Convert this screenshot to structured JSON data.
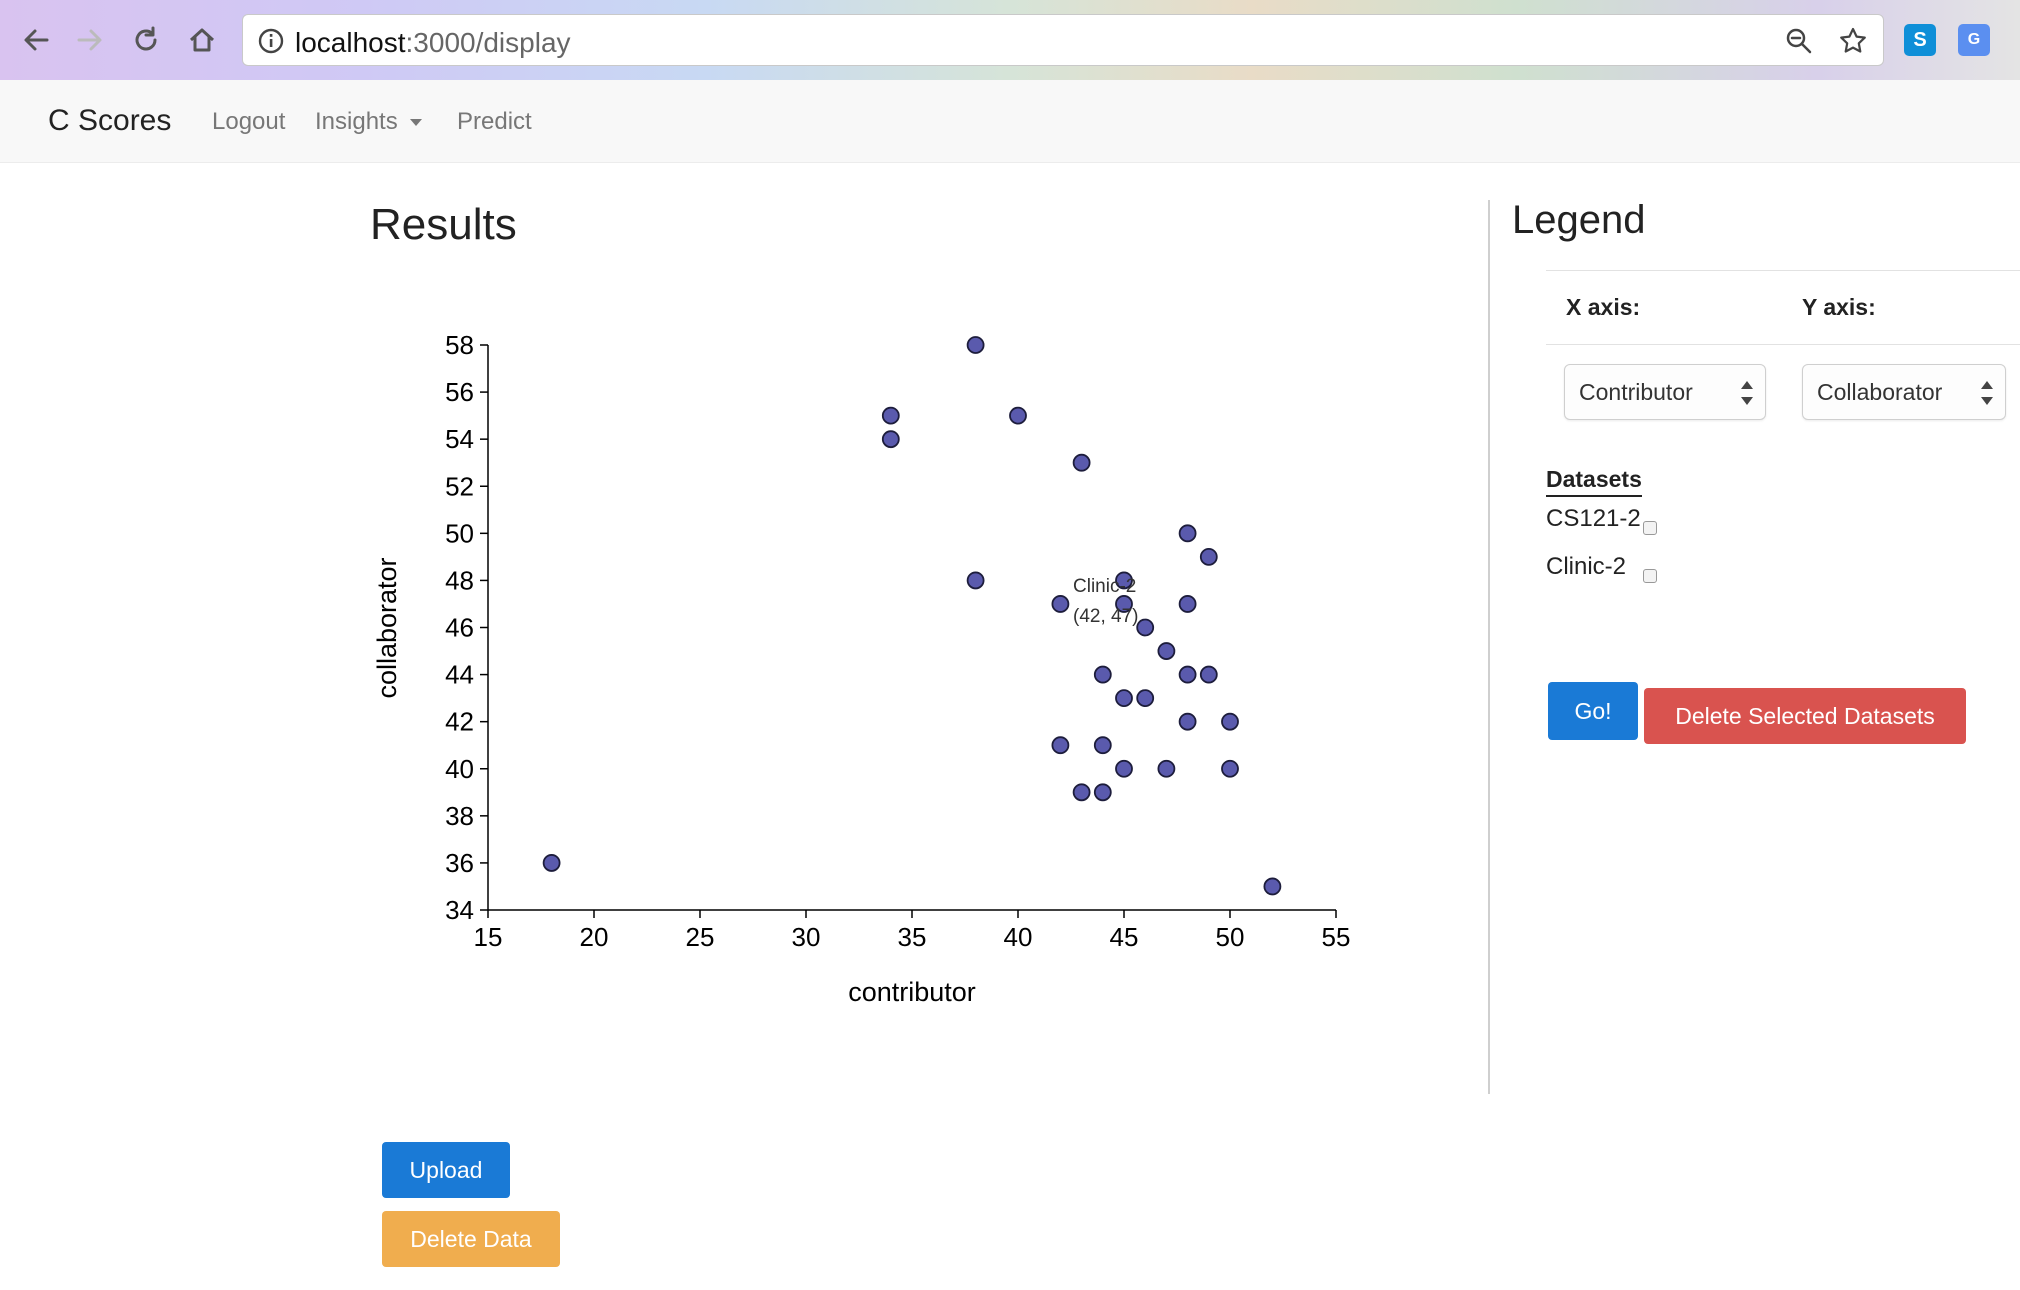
{
  "browser": {
    "url_host": "localhost",
    "url_path": ":3000/display"
  },
  "navbar": {
    "brand": "C Scores",
    "links": [
      "Logout",
      "Insights",
      "Predict"
    ]
  },
  "results": {
    "title": "Results"
  },
  "chart_data": {
    "type": "scatter",
    "xlabel": "contributor",
    "ylabel": "collaborator",
    "xlim": [
      15,
      55
    ],
    "ylim": [
      34,
      58
    ],
    "xticks": [
      15,
      20,
      25,
      30,
      35,
      40,
      45,
      50,
      55
    ],
    "yticks": [
      34,
      36,
      38,
      40,
      42,
      44,
      46,
      48,
      50,
      52,
      54,
      56,
      58
    ],
    "point_color": "#5a5aad",
    "series": [
      {
        "points": [
          [
            18,
            36
          ],
          [
            34,
            55
          ],
          [
            34,
            54
          ],
          [
            38,
            58
          ],
          [
            40,
            55
          ],
          [
            43,
            53
          ],
          [
            38,
            48
          ],
          [
            42,
            47
          ],
          [
            45,
            48
          ],
          [
            45,
            47
          ],
          [
            46,
            46
          ],
          [
            47,
            45
          ],
          [
            48,
            50
          ],
          [
            49,
            49
          ],
          [
            48,
            47
          ],
          [
            44,
            44
          ],
          [
            48,
            44
          ],
          [
            49,
            44
          ],
          [
            45,
            43
          ],
          [
            46,
            43
          ],
          [
            48,
            42
          ],
          [
            50,
            42
          ],
          [
            42,
            41
          ],
          [
            44,
            41
          ],
          [
            45,
            40
          ],
          [
            47,
            40
          ],
          [
            50,
            40
          ],
          [
            43,
            39
          ],
          [
            44,
            39
          ],
          [
            52,
            35
          ]
        ]
      }
    ],
    "tooltip": {
      "name": "Clinic-2",
      "coords": "(42, 47)"
    }
  },
  "legend": {
    "title": "Legend",
    "x_axis_label": "X axis:",
    "y_axis_label": "Y axis:",
    "x_select_value": "Contributor",
    "y_select_value": "Collaborator",
    "datasets_heading": "Datasets",
    "datasets": [
      "CS121-2",
      "Clinic-2"
    ],
    "go_label": "Go!",
    "delete_selected_label": "Delete Selected Datasets"
  },
  "actions": {
    "upload_label": "Upload",
    "delete_data_label": "Delete Data"
  }
}
